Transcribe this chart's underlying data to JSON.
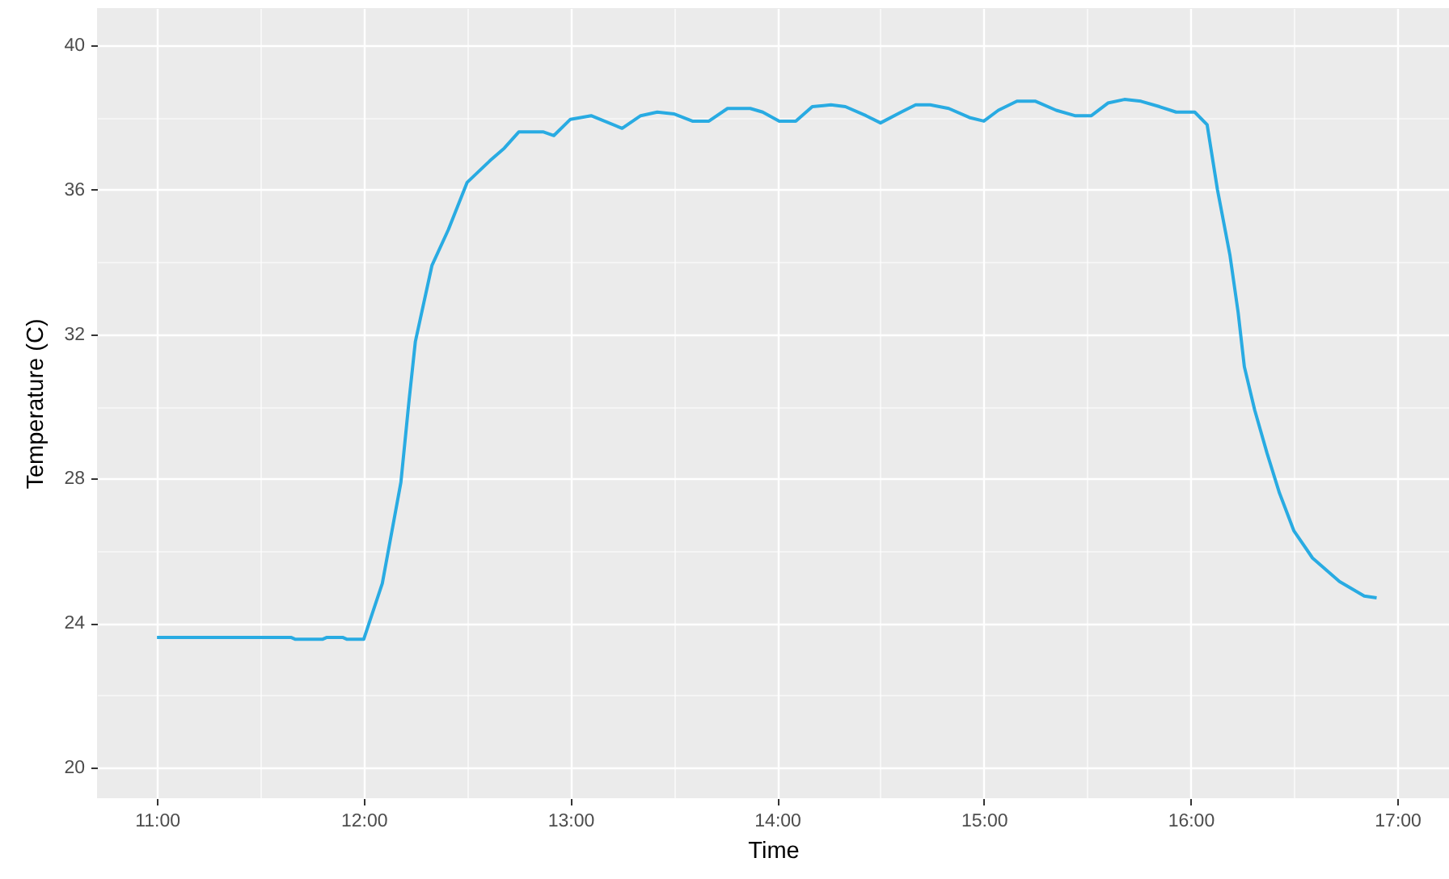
{
  "chart_data": {
    "type": "line",
    "xlabel": "Time",
    "ylabel": "Temperature (C)",
    "x": [
      11.0,
      11.65,
      11.67,
      11.8,
      11.82,
      11.9,
      11.92,
      12.0,
      12.09,
      12.18,
      12.22,
      12.25,
      12.33,
      12.41,
      12.5,
      12.61,
      12.68,
      12.75,
      12.87,
      12.92,
      13.0,
      13.1,
      13.25,
      13.34,
      13.42,
      13.5,
      13.59,
      13.67,
      13.76,
      13.87,
      13.93,
      14.01,
      14.09,
      14.17,
      14.26,
      14.33,
      14.43,
      14.5,
      14.6,
      14.67,
      14.74,
      14.83,
      14.93,
      15.0,
      15.07,
      15.16,
      15.25,
      15.35,
      15.44,
      15.52,
      15.6,
      15.68,
      15.76,
      15.85,
      15.93,
      16.02,
      16.08,
      16.13,
      16.19,
      16.23,
      16.26,
      16.31,
      16.37,
      16.43,
      16.5,
      16.59,
      16.72,
      16.84,
      16.9
    ],
    "series": [
      {
        "color": "#29abe2",
        "values": [
          23.6,
          23.6,
          23.55,
          23.55,
          23.6,
          23.6,
          23.55,
          23.55,
          25.1,
          27.9,
          30.2,
          31.8,
          33.9,
          34.9,
          36.2,
          36.8,
          37.15,
          37.6,
          37.6,
          37.5,
          37.95,
          38.05,
          37.7,
          38.05,
          38.15,
          38.1,
          37.9,
          37.9,
          38.25,
          38.25,
          38.15,
          37.9,
          37.9,
          38.3,
          38.35,
          38.3,
          38.05,
          37.85,
          38.15,
          38.35,
          38.35,
          38.25,
          38.0,
          37.9,
          38.2,
          38.45,
          38.45,
          38.2,
          38.05,
          38.05,
          38.4,
          38.5,
          38.45,
          38.3,
          38.15,
          38.15,
          37.8,
          36.0,
          34.2,
          32.6,
          31.1,
          29.9,
          28.7,
          27.6,
          26.55,
          25.8,
          25.15,
          24.75,
          24.7
        ]
      }
    ],
    "xlim": [
      10.71,
      17.25
    ],
    "xticks": [
      {
        "value": 11,
        "label": "11:00"
      },
      {
        "value": 11.5,
        "label": null
      },
      {
        "value": 12,
        "label": "12:00"
      },
      {
        "value": 12.5,
        "label": null
      },
      {
        "value": 13,
        "label": "13:00"
      },
      {
        "value": 13.5,
        "label": null
      },
      {
        "value": 14,
        "label": "14:00"
      },
      {
        "value": 14.5,
        "label": null
      },
      {
        "value": 15,
        "label": "15:00"
      },
      {
        "value": 15.5,
        "label": null
      },
      {
        "value": 16,
        "label": "16:00"
      },
      {
        "value": 16.5,
        "label": null
      },
      {
        "value": 17,
        "label": "17:00"
      }
    ],
    "ylim": [
      19.15,
      41.03
    ],
    "yticks": [
      20,
      {
        "value": 22,
        "label": null
      },
      24,
      {
        "value": 26,
        "label": null
      },
      28,
      {
        "value": 30,
        "label": null
      },
      32,
      {
        "value": 34,
        "label": null
      },
      36,
      {
        "value": 38,
        "label": null
      },
      40
    ],
    "grid": true,
    "line_style": "solid"
  }
}
